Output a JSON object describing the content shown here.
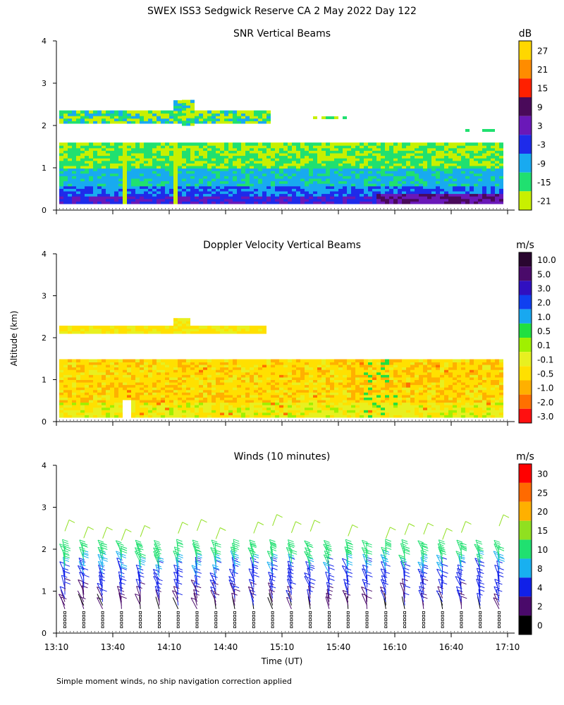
{
  "title": "SWEX ISS3 Sedgwick Reserve CA   2 May 2022 Day 122",
  "ylabel": "Altitude (km)",
  "xlabel": "Time (UT)",
  "footnote": "Simple moment winds, no ship navigation correction applied",
  "chart_data": [
    {
      "type": "heatmap",
      "title": "SNR Vertical Beams",
      "units": "dB",
      "x_ticks": [
        "13:10",
        "13:40",
        "14:10",
        "14:40",
        "15:10",
        "15:40",
        "16:10",
        "16:40",
        "17:10"
      ],
      "y_ticks": [
        "0",
        "1",
        "2",
        "3",
        "4"
      ],
      "ylim": [
        0,
        4
      ],
      "colorbar": {
        "labels": [
          "27",
          "21",
          "15",
          "9",
          "3",
          "-3",
          "-9",
          "-15",
          "-21"
        ],
        "colors": [
          "#ffd700",
          "#ff8c00",
          "#ff2000",
          "#4a0a5a",
          "#6a18b8",
          "#1e2bea",
          "#18aaf0",
          "#20e070",
          "#c8f000"
        ]
      },
      "layers": [
        {
          "alt_range_km": [
            0.15,
            0.5
          ],
          "level": "-3 to 9",
          "times": "13:10-17:10"
        },
        {
          "alt_range_km": [
            0.5,
            1.0
          ],
          "level": "-9 to -3",
          "times": "13:10-17:10"
        },
        {
          "alt_range_km": [
            1.0,
            1.55
          ],
          "level": "-21 to -9",
          "times": "13:10-17:10"
        },
        {
          "alt_range_km": [
            2.0,
            2.3
          ],
          "level": "-21 to -3",
          "times": "13:10-15:00"
        }
      ]
    },
    {
      "type": "heatmap",
      "title": "Doppler Velocity Vertical Beams",
      "units": "m/s",
      "x_ticks": [
        "13:10",
        "13:40",
        "14:10",
        "14:40",
        "15:10",
        "15:40",
        "16:10",
        "16:40",
        "17:10"
      ],
      "y_ticks": [
        "0",
        "1",
        "2",
        "3",
        "4"
      ],
      "ylim": [
        0,
        4
      ],
      "colorbar": {
        "labels": [
          "10.0",
          "5.0",
          "3.0",
          "2.0",
          "1.0",
          "0.5",
          "0.1",
          "-0.1",
          "-0.5",
          "-1.0",
          "-2.0",
          "-3.0"
        ],
        "colors": [
          "#2a0630",
          "#4a0a6a",
          "#3010c0",
          "#1040f0",
          "#18a8f0",
          "#20e040",
          "#a0f000",
          "#e8f020",
          "#ffe000",
          "#ffb000",
          "#ff7000",
          "#ff1010"
        ]
      },
      "layers": [
        {
          "alt_range_km": [
            0.1,
            1.45
          ],
          "level": "-0.5 to -0.1",
          "times": "13:10-17:10"
        },
        {
          "alt_range_km": [
            2.1,
            2.25
          ],
          "level": "-0.5 to -0.1",
          "times": "13:10-15:00"
        }
      ]
    },
    {
      "type": "wind-barbs",
      "title": "Winds (10 minutes)",
      "units": "m/s",
      "x_ticks": [
        "13:10",
        "13:40",
        "14:10",
        "14:40",
        "15:10",
        "15:40",
        "16:10",
        "16:40",
        "17:10"
      ],
      "y_ticks": [
        "0",
        "1",
        "2",
        "3",
        "4"
      ],
      "ylim": [
        0,
        4
      ],
      "colorbar": {
        "labels": [
          "30",
          "25",
          "20",
          "15",
          "10",
          "8",
          "4",
          "2",
          "0"
        ],
        "colors": [
          "#ff0000",
          "#ff6a00",
          "#ffb000",
          "#90e020",
          "#20e070",
          "#18b0f0",
          "#1020e8",
          "#4a0a6a",
          "#000000"
        ]
      },
      "profile_times": [
        "13:10",
        "13:20",
        "13:30",
        "13:40",
        "13:50",
        "14:00",
        "14:10",
        "14:20",
        "14:30",
        "14:40",
        "14:50",
        "15:00",
        "15:10",
        "15:20",
        "15:30",
        "15:40",
        "15:50",
        "16:00",
        "16:10",
        "16:20",
        "16:30",
        "16:40",
        "16:50",
        "17:00"
      ],
      "speed_by_altitude": {
        "alt_km": [
          0.2,
          0.5,
          1.0,
          1.5,
          1.8,
          2.3,
          2.6
        ],
        "speed_ms": [
          1,
          2,
          5,
          8,
          12,
          16,
          18
        ]
      }
    }
  ]
}
